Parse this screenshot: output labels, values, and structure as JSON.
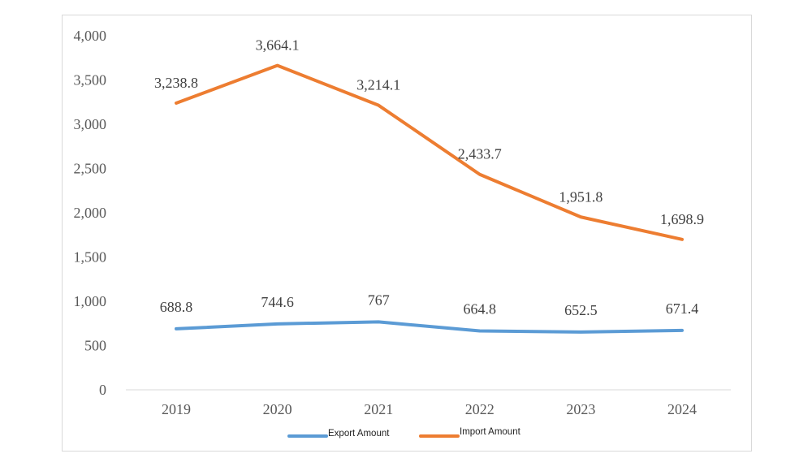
{
  "chart_data": {
    "type": "line",
    "categories": [
      "2019",
      "2020",
      "2021",
      "2022",
      "2023",
      "2024"
    ],
    "series": [
      {
        "name": "Export Amount",
        "color": "#5B9BD5",
        "values": [
          688.8,
          744.6,
          767,
          664.8,
          652.5,
          671.4
        ],
        "labels": [
          "688.8",
          "744.6",
          "767",
          "664.8",
          "652.5",
          "671.4"
        ]
      },
      {
        "name": "Import Amount",
        "color": "#ED7D31",
        "values": [
          3238.8,
          3664.1,
          3214.1,
          2433.7,
          1951.8,
          1698.9
        ],
        "labels": [
          "3,238.8",
          "3,664.1",
          "3,214.1",
          "2,433.7",
          "1,951.8",
          "1,698.9"
        ]
      }
    ],
    "yticks": [
      "0",
      "500",
      "1,000",
      "1,500",
      "2,000",
      "2,500",
      "3,000",
      "3,500",
      "4,000"
    ],
    "ylim": [
      0,
      4000
    ],
    "grid": false,
    "legend": "bottom"
  }
}
